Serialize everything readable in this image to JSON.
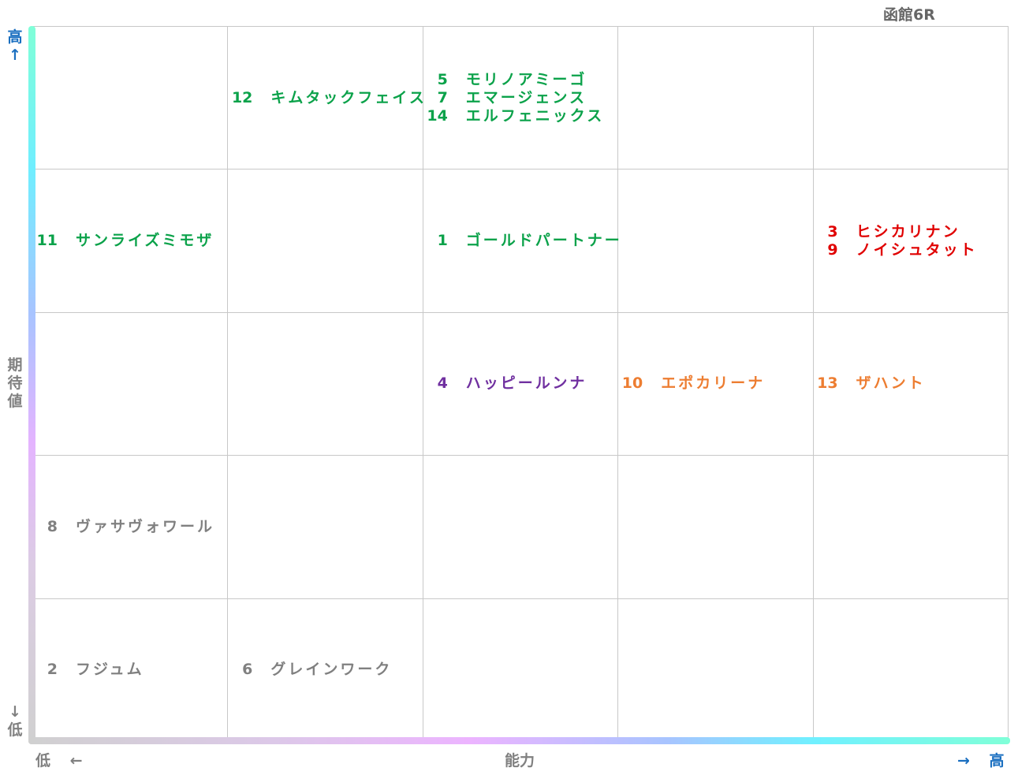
{
  "title": "函館6R",
  "axes": {
    "y_high": "高↑",
    "y_label": "期待値",
    "y_low": "↓低",
    "x_low": "低 ←",
    "x_label": "能力",
    "x_high": "→ 高"
  },
  "grid": {
    "rows": [
      [
        [],
        [
          {
            "number": "12",
            "name": "キムタックフェイス",
            "color": "#0ba24a"
          }
        ],
        [
          {
            "number": "5",
            "name": "モリノアミーゴ",
            "color": "#0ba24a"
          },
          {
            "number": "7",
            "name": "エマージェンス",
            "color": "#0ba24a"
          },
          {
            "number": "14",
            "name": "エルフェニックス",
            "color": "#0ba24a"
          }
        ],
        [],
        []
      ],
      [
        [
          {
            "number": "11",
            "name": "サンライズミモザ",
            "color": "#0ba24a"
          }
        ],
        [],
        [
          {
            "number": "1",
            "name": "ゴールドパートナー",
            "color": "#0ba24a"
          }
        ],
        [],
        [
          {
            "number": "3",
            "name": "ヒシカリナン",
            "color": "#e00000"
          },
          {
            "number": "9",
            "name": "ノイシュタット",
            "color": "#e00000"
          }
        ]
      ],
      [
        [],
        [],
        [
          {
            "number": "4",
            "name": "ハッピールンナ",
            "color": "#7030a0"
          }
        ],
        [
          {
            "number": "10",
            "name": "エポカリーナ",
            "color": "#ed7d31"
          }
        ],
        [
          {
            "number": "13",
            "name": "ザハント",
            "color": "#ed7d31"
          }
        ]
      ],
      [
        [
          {
            "number": "8",
            "name": "ヴァサヴォワール",
            "color": "#808080"
          }
        ],
        [],
        [],
        [],
        []
      ],
      [
        [
          {
            "number": "2",
            "name": "フジュム",
            "color": "#808080"
          }
        ],
        [
          {
            "number": "6",
            "name": "グレインワーク",
            "color": "#808080"
          }
        ],
        [],
        [],
        []
      ]
    ]
  }
}
